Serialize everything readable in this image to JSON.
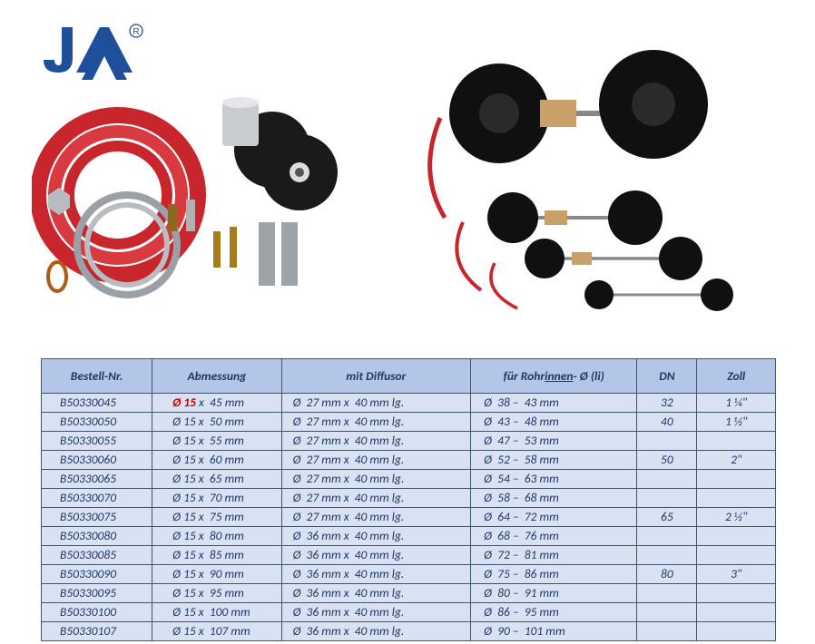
{
  "logo": {
    "registered": "®"
  },
  "table": {
    "headers": {
      "bestell": "Bestell-Nr.",
      "abmessung": "Abmessung",
      "diffusor": "mit Diffusor",
      "rohrinnen_pre": "für Rohr",
      "rohrinnen_u": "innen",
      "rohrinnen_post": "- Ø (li)",
      "dn": "DN",
      "zoll": "Zoll"
    },
    "rows": [
      {
        "nr": "B50330045",
        "abm_d": "15",
        "abm_l": "45",
        "abm_red": true,
        "diff_d": "27",
        "diff_l": "40",
        "rohr_lo": "38",
        "rohr_hi": "43",
        "dn": "32",
        "zoll": "1 ¼\""
      },
      {
        "nr": "B50330050",
        "abm_d": "15",
        "abm_l": "50",
        "abm_red": false,
        "diff_d": "27",
        "diff_l": "40",
        "rohr_lo": "43",
        "rohr_hi": "48",
        "dn": "40",
        "zoll": "1 ½\""
      },
      {
        "nr": "B50330055",
        "abm_d": "15",
        "abm_l": "55",
        "abm_red": false,
        "diff_d": "27",
        "diff_l": "40",
        "rohr_lo": "47",
        "rohr_hi": "53",
        "dn": "",
        "zoll": ""
      },
      {
        "nr": "B50330060",
        "abm_d": "15",
        "abm_l": "60",
        "abm_red": false,
        "diff_d": "27",
        "diff_l": "40",
        "rohr_lo": "52",
        "rohr_hi": "58",
        "dn": "50",
        "zoll": "2\""
      },
      {
        "nr": "B50330065",
        "abm_d": "15",
        "abm_l": "65",
        "abm_red": false,
        "diff_d": "27",
        "diff_l": "40",
        "rohr_lo": "54",
        "rohr_hi": "63",
        "dn": "",
        "zoll": ""
      },
      {
        "nr": "B50330070",
        "abm_d": "15",
        "abm_l": "70",
        "abm_red": false,
        "diff_d": "27",
        "diff_l": "40",
        "rohr_lo": "58",
        "rohr_hi": "68",
        "dn": "",
        "zoll": ""
      },
      {
        "nr": "B50330075",
        "abm_d": "15",
        "abm_l": "75",
        "abm_red": false,
        "diff_d": "27",
        "diff_l": "40",
        "rohr_lo": "64",
        "rohr_hi": "72",
        "dn": "65",
        "zoll": "2 ½\""
      },
      {
        "nr": "B50330080",
        "abm_d": "15",
        "abm_l": "80",
        "abm_red": false,
        "diff_d": "36",
        "diff_l": "40",
        "rohr_lo": "68",
        "rohr_hi": "76",
        "dn": "",
        "zoll": ""
      },
      {
        "nr": "B50330085",
        "abm_d": "15",
        "abm_l": "85",
        "abm_red": false,
        "diff_d": "36",
        "diff_l": "40",
        "rohr_lo": "72",
        "rohr_hi": "81",
        "dn": "",
        "zoll": ""
      },
      {
        "nr": "B50330090",
        "abm_d": "15",
        "abm_l": "90",
        "abm_red": false,
        "diff_d": "36",
        "diff_l": "40",
        "rohr_lo": "75",
        "rohr_hi": "86",
        "dn": "80",
        "zoll": "3\""
      },
      {
        "nr": "B50330095",
        "abm_d": "15",
        "abm_l": "95",
        "abm_red": false,
        "diff_d": "36",
        "diff_l": "40",
        "rohr_lo": "80",
        "rohr_hi": "91",
        "dn": "",
        "zoll": ""
      },
      {
        "nr": "B50330100",
        "abm_d": "15",
        "abm_l": "100",
        "abm_red": false,
        "diff_d": "36",
        "diff_l": "40",
        "rohr_lo": "86",
        "rohr_hi": "95",
        "dn": "",
        "zoll": ""
      },
      {
        "nr": "B50330107",
        "abm_d": "15",
        "abm_l": "107",
        "abm_red": false,
        "diff_d": "36",
        "diff_l": "40",
        "rohr_lo": "90",
        "rohr_hi": "101",
        "dn": "",
        "zoll": ""
      }
    ]
  },
  "style": {
    "header_bg": "#b4c6e7",
    "cell_bg": "#d9e2f3",
    "text_color": "#1f3864",
    "border_color": "#44546a",
    "red": "#c00000",
    "logo_blue": "#1f4e9b",
    "font_size_pt": 13.5
  }
}
